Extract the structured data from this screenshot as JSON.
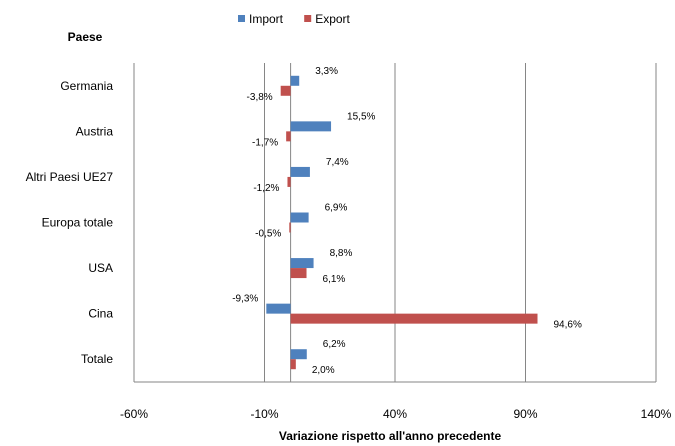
{
  "chart_data": {
    "type": "bar",
    "orientation": "horizontal",
    "categories": [
      "Germania",
      "Austria",
      "Altri Paesi UE27",
      "Europa totale",
      "USA",
      "Cina",
      "Totale"
    ],
    "category_axis_title": "Paese",
    "xlabel": "Variazione rispetto all'anno precedente",
    "xlim": [
      -60,
      140
    ],
    "x_ticks": [
      -60,
      -10,
      40,
      90,
      140
    ],
    "x_tick_labels": [
      "-60%",
      "-10%",
      "40%",
      "90%",
      "140%"
    ],
    "grid": "vertical",
    "legend_position": "top",
    "series": [
      {
        "name": "Import",
        "color": "#4f81bd",
        "values": [
          3.3,
          15.5,
          7.4,
          6.9,
          8.8,
          -9.3,
          6.2
        ],
        "labels": [
          "3,3%",
          "15,5%",
          "7,4%",
          "6,9%",
          "8,8%",
          "-9,3%",
          "6,2%"
        ]
      },
      {
        "name": "Export",
        "color": "#c0504d",
        "values": [
          -3.8,
          -1.7,
          -1.2,
          -0.5,
          6.1,
          94.6,
          2.0
        ],
        "labels": [
          "-3,8%",
          "-1,7%",
          "-1,2%",
          "-0,5%",
          "6,1%",
          "94,6%",
          "2,0%"
        ]
      }
    ]
  }
}
